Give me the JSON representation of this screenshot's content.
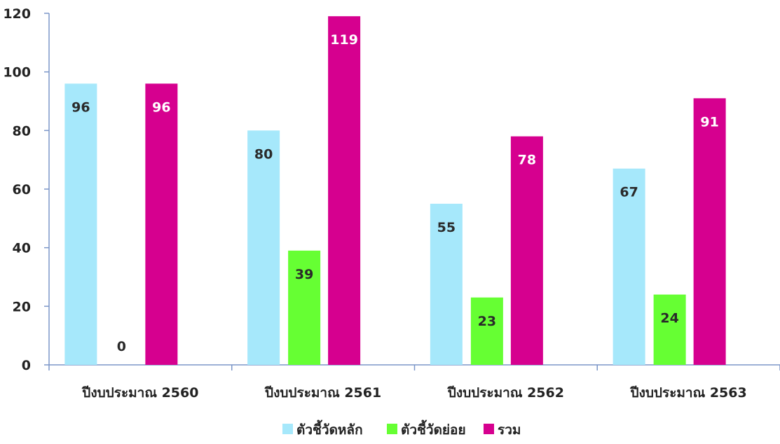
{
  "chart_data": {
    "type": "bar",
    "categories": [
      "ปีงบประมาณ 2560",
      "ปีงบประมาณ 2561",
      "ปีงบประมาณ 2562",
      "ปีงบประมาณ 2563"
    ],
    "series": [
      {
        "name": "ตัวชี้วัดหลัก",
        "values": [
          96,
          80,
          55,
          67
        ],
        "color": "#a6e8fb",
        "label_color": "#2a2a2a"
      },
      {
        "name": "ตัวชี้วัดย่อย",
        "values": [
          0,
          39,
          23,
          24
        ],
        "color": "#66ff33",
        "label_color": "#2a2a2a"
      },
      {
        "name": "รวม",
        "values": [
          96,
          119,
          78,
          91
        ],
        "color": "#d6008f",
        "label_color": "#ffffff"
      }
    ],
    "ylim": [
      0,
      120
    ],
    "yticks": [
      0,
      20,
      40,
      60,
      80,
      100,
      120
    ],
    "grid": false,
    "legend_position": "bottom-center",
    "data_labels": true,
    "axis_color": "#7b96c8"
  }
}
